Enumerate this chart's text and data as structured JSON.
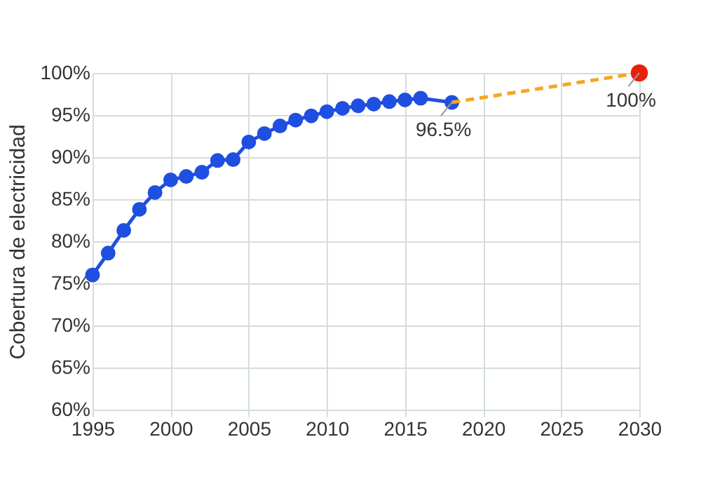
{
  "chart_data": {
    "type": "line",
    "ylabel": "Cobertura de electricidad",
    "xlim": [
      1995,
      2030
    ],
    "xticks": [
      1995,
      2000,
      2005,
      2010,
      2015,
      2020,
      2025,
      2030
    ],
    "ylim": [
      60,
      100
    ],
    "yticks": [
      {
        "value": 60,
        "label": "60%"
      },
      {
        "value": 65,
        "label": "65%"
      },
      {
        "value": 70,
        "label": "70%"
      },
      {
        "value": 75,
        "label": "75%"
      },
      {
        "value": 80,
        "label": "80%"
      },
      {
        "value": 85,
        "label": "85%"
      },
      {
        "value": 90,
        "label": "90%"
      },
      {
        "value": 95,
        "label": "95%"
      },
      {
        "value": 100,
        "label": "100%"
      }
    ],
    "grid": true,
    "series": [
      {
        "color": "#1f4fe0",
        "marker": "circle",
        "line_style": "solid",
        "x": [
          1995,
          1996,
          1997,
          1998,
          1999,
          2000,
          2001,
          2002,
          2003,
          2004,
          2005,
          2006,
          2007,
          2008,
          2009,
          2010,
          2011,
          2012,
          2013,
          2014,
          2015,
          2016,
          2018
        ],
        "values": [
          76.0,
          78.6,
          81.3,
          83.8,
          85.8,
          87.3,
          87.7,
          88.2,
          89.6,
          89.7,
          91.8,
          92.8,
          93.7,
          94.4,
          94.9,
          95.4,
          95.8,
          96.1,
          96.3,
          96.6,
          96.8,
          97.0,
          96.5
        ]
      },
      {
        "color": "#f5a623",
        "marker": "none",
        "line_style": "dashed",
        "x": [
          2018,
          2030
        ],
        "values": [
          96.5,
          100
        ]
      },
      {
        "type": "scatter",
        "color": "#e8210c",
        "marker": "circle",
        "x": [
          2030
        ],
        "values": [
          100
        ]
      }
    ],
    "annotations": [
      {
        "text": "96.5%",
        "x": 2018,
        "y": 96.5
      },
      {
        "text": "100%",
        "x": 2030,
        "y": 100
      }
    ]
  }
}
